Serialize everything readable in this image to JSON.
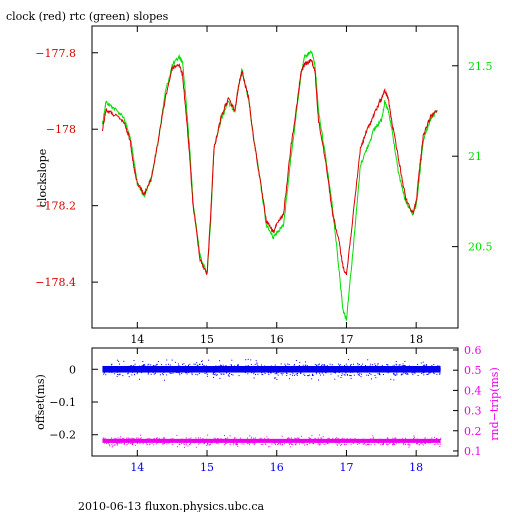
{
  "colors": {
    "clock": "#dd0000",
    "rtc": "#00dd00",
    "offset": "#0000ee",
    "rtt": "#ee00ee",
    "axis": "#000000"
  },
  "footer": "2010-06-13 fluxon.physics.ubc.ca",
  "chart_data": [
    {
      "type": "line",
      "title": "clock (red) rtc (green) slopes",
      "ylabel": "clockslope",
      "xlim": [
        13.35,
        18.6
      ],
      "ylim": [
        -178.52,
        -177.73
      ],
      "y2lim": [
        20.05,
        21.72
      ],
      "xticks": [
        14,
        15,
        16,
        17,
        18
      ],
      "yticks": [
        -177.8,
        -178,
        -178.2,
        -178.4
      ],
      "ytick_labels": [
        "−177.8",
        "−178",
        "−178.2",
        "−178.4"
      ],
      "y2ticks": [
        21.5,
        21,
        20.5
      ],
      "y2tick_labels": [
        "21.5",
        "21",
        "20.5"
      ],
      "series": [
        {
          "name": "clock",
          "axis": "left",
          "x": [
            13.5,
            13.55,
            13.65,
            13.8,
            13.9,
            13.95,
            14.0,
            14.1,
            14.2,
            14.3,
            14.4,
            14.5,
            14.6,
            14.65,
            14.7,
            14.75,
            14.8,
            14.9,
            15.0,
            15.05,
            15.1,
            15.2,
            15.3,
            15.4,
            15.45,
            15.5,
            15.6,
            15.65,
            15.75,
            15.85,
            15.95,
            16.0,
            16.1,
            16.2,
            16.3,
            16.35,
            16.4,
            16.5,
            16.55,
            16.6,
            16.7,
            16.8,
            16.9,
            16.95,
            17.0,
            17.1,
            17.2,
            17.3,
            17.4,
            17.5,
            17.55,
            17.6,
            17.65,
            17.75,
            17.85,
            17.95,
            18.0,
            18.05,
            18.1,
            18.2,
            18.3
          ],
          "y": [
            -178.0,
            -177.95,
            -177.96,
            -177.98,
            -178.03,
            -178.1,
            -178.14,
            -178.17,
            -178.13,
            -178.03,
            -177.92,
            -177.84,
            -177.83,
            -177.86,
            -177.96,
            -178.07,
            -178.2,
            -178.34,
            -178.38,
            -178.23,
            -178.05,
            -177.97,
            -177.92,
            -177.95,
            -177.89,
            -177.85,
            -177.92,
            -178.0,
            -178.12,
            -178.24,
            -178.27,
            -178.25,
            -178.22,
            -178.05,
            -177.92,
            -177.85,
            -177.83,
            -177.82,
            -177.85,
            -177.98,
            -178.08,
            -178.22,
            -178.3,
            -178.36,
            -178.38,
            -178.22,
            -178.05,
            -178.0,
            -177.96,
            -177.92,
            -177.9,
            -177.92,
            -177.98,
            -178.08,
            -178.18,
            -178.22,
            -178.19,
            -178.1,
            -178.02,
            -177.97,
            -177.95
          ]
        },
        {
          "name": "rtc",
          "axis": "right",
          "x": [
            13.5,
            13.55,
            13.65,
            13.8,
            13.9,
            13.95,
            14.0,
            14.1,
            14.2,
            14.3,
            14.4,
            14.5,
            14.6,
            14.65,
            14.7,
            14.75,
            14.8,
            14.9,
            15.0,
            15.05,
            15.1,
            15.2,
            15.3,
            15.4,
            15.45,
            15.5,
            15.6,
            15.65,
            15.75,
            15.85,
            15.95,
            16.0,
            16.1,
            16.2,
            16.3,
            16.35,
            16.4,
            16.5,
            16.55,
            16.6,
            16.7,
            16.8,
            16.9,
            16.95,
            17.0,
            17.1,
            17.2,
            17.3,
            17.4,
            17.5,
            17.55,
            17.6,
            17.65,
            17.75,
            17.85,
            17.95,
            18.0,
            18.05,
            18.1,
            18.2,
            18.3
          ],
          "y": [
            21.18,
            21.3,
            21.27,
            21.22,
            21.1,
            20.98,
            20.85,
            20.78,
            20.88,
            21.08,
            21.35,
            21.5,
            21.55,
            21.52,
            21.3,
            21.05,
            20.75,
            20.45,
            20.35,
            20.62,
            21.05,
            21.2,
            21.3,
            21.25,
            21.38,
            21.48,
            21.3,
            21.15,
            20.9,
            20.62,
            20.55,
            20.58,
            20.62,
            20.98,
            21.3,
            21.45,
            21.55,
            21.58,
            21.5,
            21.25,
            21.0,
            20.72,
            20.35,
            20.15,
            20.1,
            20.5,
            20.95,
            21.05,
            21.15,
            21.2,
            21.3,
            21.25,
            21.15,
            20.9,
            20.75,
            20.68,
            20.72,
            20.9,
            21.08,
            21.2,
            21.25
          ]
        }
      ]
    },
    {
      "type": "scatter",
      "ylabel": "offset(ms)",
      "y2label": "rnd−trip(ms)",
      "xlim": [
        13.35,
        18.6
      ],
      "ylim": [
        -0.265,
        0.065
      ],
      "y2lim": [
        0.075,
        0.61
      ],
      "xticks": [
        14,
        15,
        16,
        17,
        18
      ],
      "yticks": [
        0,
        -0.1,
        -0.2
      ],
      "ytick_labels": [
        "0",
        "−0.1",
        "−0.2"
      ],
      "y2ticks": [
        0.6,
        0.5,
        0.4,
        0.3,
        0.2,
        0.1
      ],
      "y2tick_labels": [
        "0.6",
        "0.5",
        "0.4",
        "0.3",
        "0.2",
        "0.1"
      ],
      "series": [
        {
          "name": "offset",
          "axis": "left",
          "x_range": [
            13.5,
            18.35
          ],
          "center": 0.0,
          "spread": 0.02
        },
        {
          "name": "rnd-trip",
          "axis": "right",
          "x_range": [
            13.5,
            18.35
          ],
          "center": 0.15,
          "spread": 0.02
        }
      ]
    }
  ]
}
